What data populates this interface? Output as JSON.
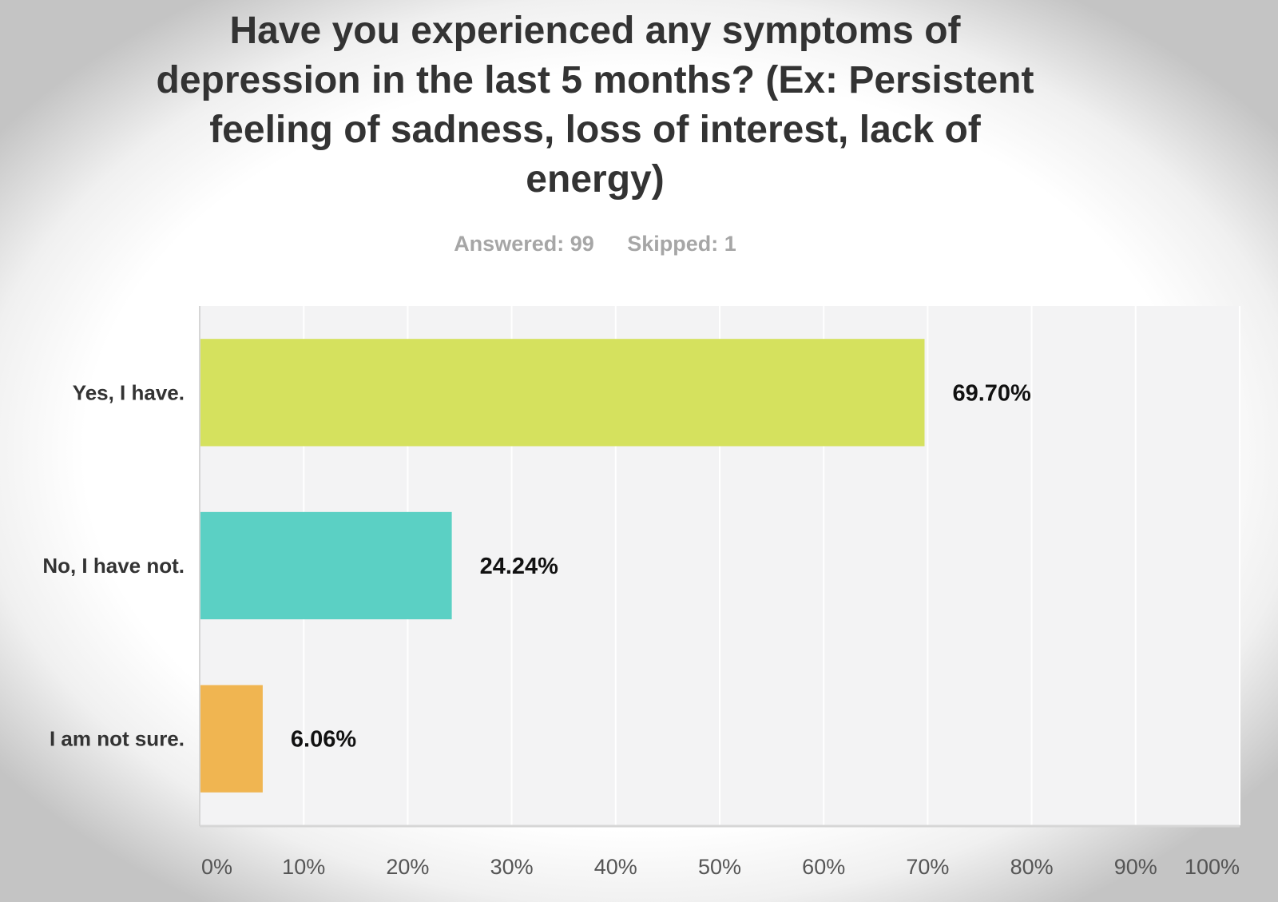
{
  "title": "Have you experienced any symptoms of depression in the last 5 months? (Ex: Persistent feeling of sadness, loss of interest, lack of energy)",
  "stats": {
    "answered": "Answered: 99",
    "skipped": "Skipped: 1"
  },
  "chart_data": {
    "type": "bar",
    "orientation": "horizontal",
    "title": "Have you experienced any symptoms of depression in the last 5 months? (Ex: Persistent feeling of sadness, loss of interest, lack of energy)",
    "categories": [
      "Yes, I have.",
      "No, I have not.",
      "I am not sure."
    ],
    "values": [
      69.7,
      24.24,
      6.06
    ],
    "value_labels": [
      "69.70%",
      "24.24%",
      "6.06%"
    ],
    "bar_colors": [
      "#d5e15e",
      "#5bd0c4",
      "#f0b551"
    ],
    "xlim": [
      0,
      100
    ],
    "xticks": [
      0,
      10,
      20,
      30,
      40,
      50,
      60,
      70,
      80,
      90,
      100
    ],
    "xtick_labels": [
      "0%",
      "10%",
      "20%",
      "30%",
      "40%",
      "50%",
      "60%",
      "70%",
      "80%",
      "90%",
      "100%"
    ],
    "xlabel": "",
    "ylabel": "",
    "grid": true,
    "legend": false
  },
  "colors": {
    "plot_background": "#f3f3f4",
    "gridline": "#ffffff",
    "axis": "#d6d6d6"
  }
}
